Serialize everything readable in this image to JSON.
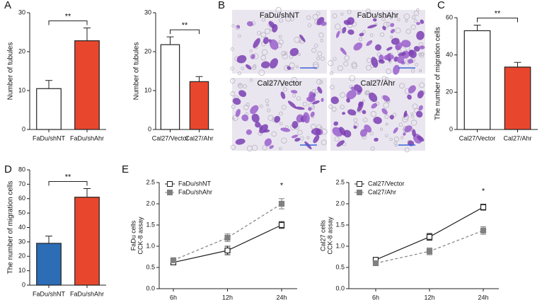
{
  "chart_data": [
    {
      "type": "bar",
      "panel": "A",
      "categories": [
        "FaDu/shNT",
        "FaDu/shAhr"
      ],
      "values": [
        10.5,
        22.8
      ],
      "errors": [
        2.1,
        3.3
      ],
      "colors": [
        "#ffffff",
        "#e8472e"
      ],
      "ylabel": "Number of tubules",
      "ylim": [
        0,
        30
      ],
      "yticks": [
        0,
        10,
        20,
        30
      ],
      "annotation": "**"
    },
    {
      "type": "bar",
      "categories": [
        "Cal27/Vector",
        "Cal27/Ahr"
      ],
      "values": [
        21.8,
        12.3
      ],
      "errors": [
        2,
        1.3
      ],
      "colors": [
        "#ffffff",
        "#e8472e"
      ],
      "ylabel": "Number of tubules",
      "ylim": [
        0,
        30
      ],
      "yticks": [
        0,
        10,
        20,
        30
      ],
      "annotation": "**"
    },
    {
      "type": "bar",
      "panel": "C",
      "categories": [
        "Cal27/Vector",
        "Cal27/Ahr"
      ],
      "values": [
        53,
        33.5
      ],
      "errors": [
        3,
        2.5
      ],
      "colors": [
        "#ffffff",
        "#e8472e"
      ],
      "ylabel": "The number of migration cells",
      "ylim": [
        0,
        60
      ],
      "yticks": [
        0,
        20,
        40,
        60
      ],
      "annotation": "**"
    },
    {
      "type": "bar",
      "panel": "D",
      "categories": [
        "FaDu/shNT",
        "FaDu/shAhr"
      ],
      "values": [
        29,
        61
      ],
      "errors": [
        5,
        6
      ],
      "colors": [
        "#2c6db5",
        "#e8472e"
      ],
      "ylabel": "The number of migration cells",
      "ylim": [
        0,
        80
      ],
      "yticks": [
        0,
        10,
        20,
        30,
        40,
        50,
        60,
        70,
        80
      ],
      "annotation": "**"
    },
    {
      "type": "line",
      "panel": "E",
      "categories": [
        "6h",
        "12h",
        "24h"
      ],
      "series": [
        {
          "name": "FaDu/shNT",
          "color": "#222222",
          "marker": "open",
          "line": "solid",
          "values": [
            0.62,
            0.9,
            1.5
          ],
          "errors": [
            0.04,
            0.1,
            0.08
          ]
        },
        {
          "name": "FaDu/shAhr",
          "color": "#808080",
          "marker": "filled",
          "line": "dashed",
          "values": [
            0.67,
            1.2,
            2.0
          ],
          "errors": [
            0.05,
            0.09,
            0.12
          ]
        }
      ],
      "ylabel": [
        "FaDu cells",
        "CCK-8 assay"
      ],
      "ylim": [
        0,
        2.5
      ],
      "yticks": [
        {
          "value": 0,
          "label": "0.0"
        },
        0.5,
        {
          "value": 1,
          "label": "1.0"
        },
        1.5,
        {
          "value": 2,
          "label": "2.0"
        },
        2.5
      ],
      "annotation": "*",
      "legend": "upper left"
    },
    {
      "type": "line",
      "panel": "F",
      "categories": [
        "6h",
        "12h",
        "24h"
      ],
      "series": [
        {
          "name": "Cal27/Vector",
          "color": "#222222",
          "marker": "open",
          "line": "solid",
          "values": [
            0.68,
            1.22,
            1.92
          ],
          "errors": [
            0.05,
            0.08,
            0.07
          ]
        },
        {
          "name": "Cal27/Ahr",
          "color": "#808080",
          "marker": "filled",
          "line": "dashed",
          "values": [
            0.6,
            0.88,
            1.37
          ],
          "errors": [
            0.04,
            0.08,
            0.09
          ]
        }
      ],
      "ylabel": [
        "Cal27 cells",
        "CCK-8 assay"
      ],
      "ylim": [
        0,
        2.5
      ],
      "yticks": [
        {
          "value": 0,
          "label": "0.0"
        },
        0.5,
        {
          "value": 1,
          "label": "1.0"
        },
        1.5,
        {
          "value": 2,
          "label": "2.0"
        },
        2.5
      ],
      "annotation": "*",
      "legend": "upper left"
    }
  ],
  "images": {
    "panel": "B",
    "labels": [
      "FaDu/shNT",
      "FaDu/shAhr",
      "Cal27/Vector",
      "Cal27/Ahr"
    ]
  }
}
